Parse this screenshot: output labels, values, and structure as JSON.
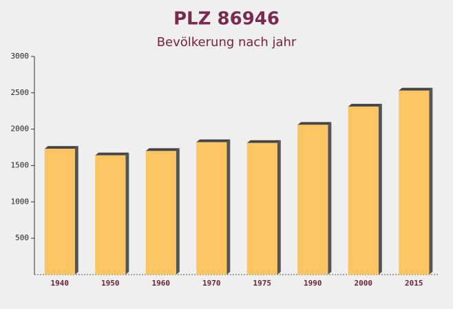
{
  "chart_data": {
    "type": "bar",
    "title": "PLZ 86946",
    "subtitle": "Bevölkerung nach jahr",
    "categories": [
      "1940",
      "1950",
      "1960",
      "1970",
      "1975",
      "1990",
      "2000",
      "2015"
    ],
    "values": [
      1730,
      1640,
      1700,
      1820,
      1810,
      2060,
      2310,
      2530
    ],
    "color": "#fbc564",
    "ylim": [
      0,
      3000
    ],
    "yticks": [
      500,
      1000,
      1500,
      2000,
      2500,
      3000
    ],
    "grid": false
  }
}
